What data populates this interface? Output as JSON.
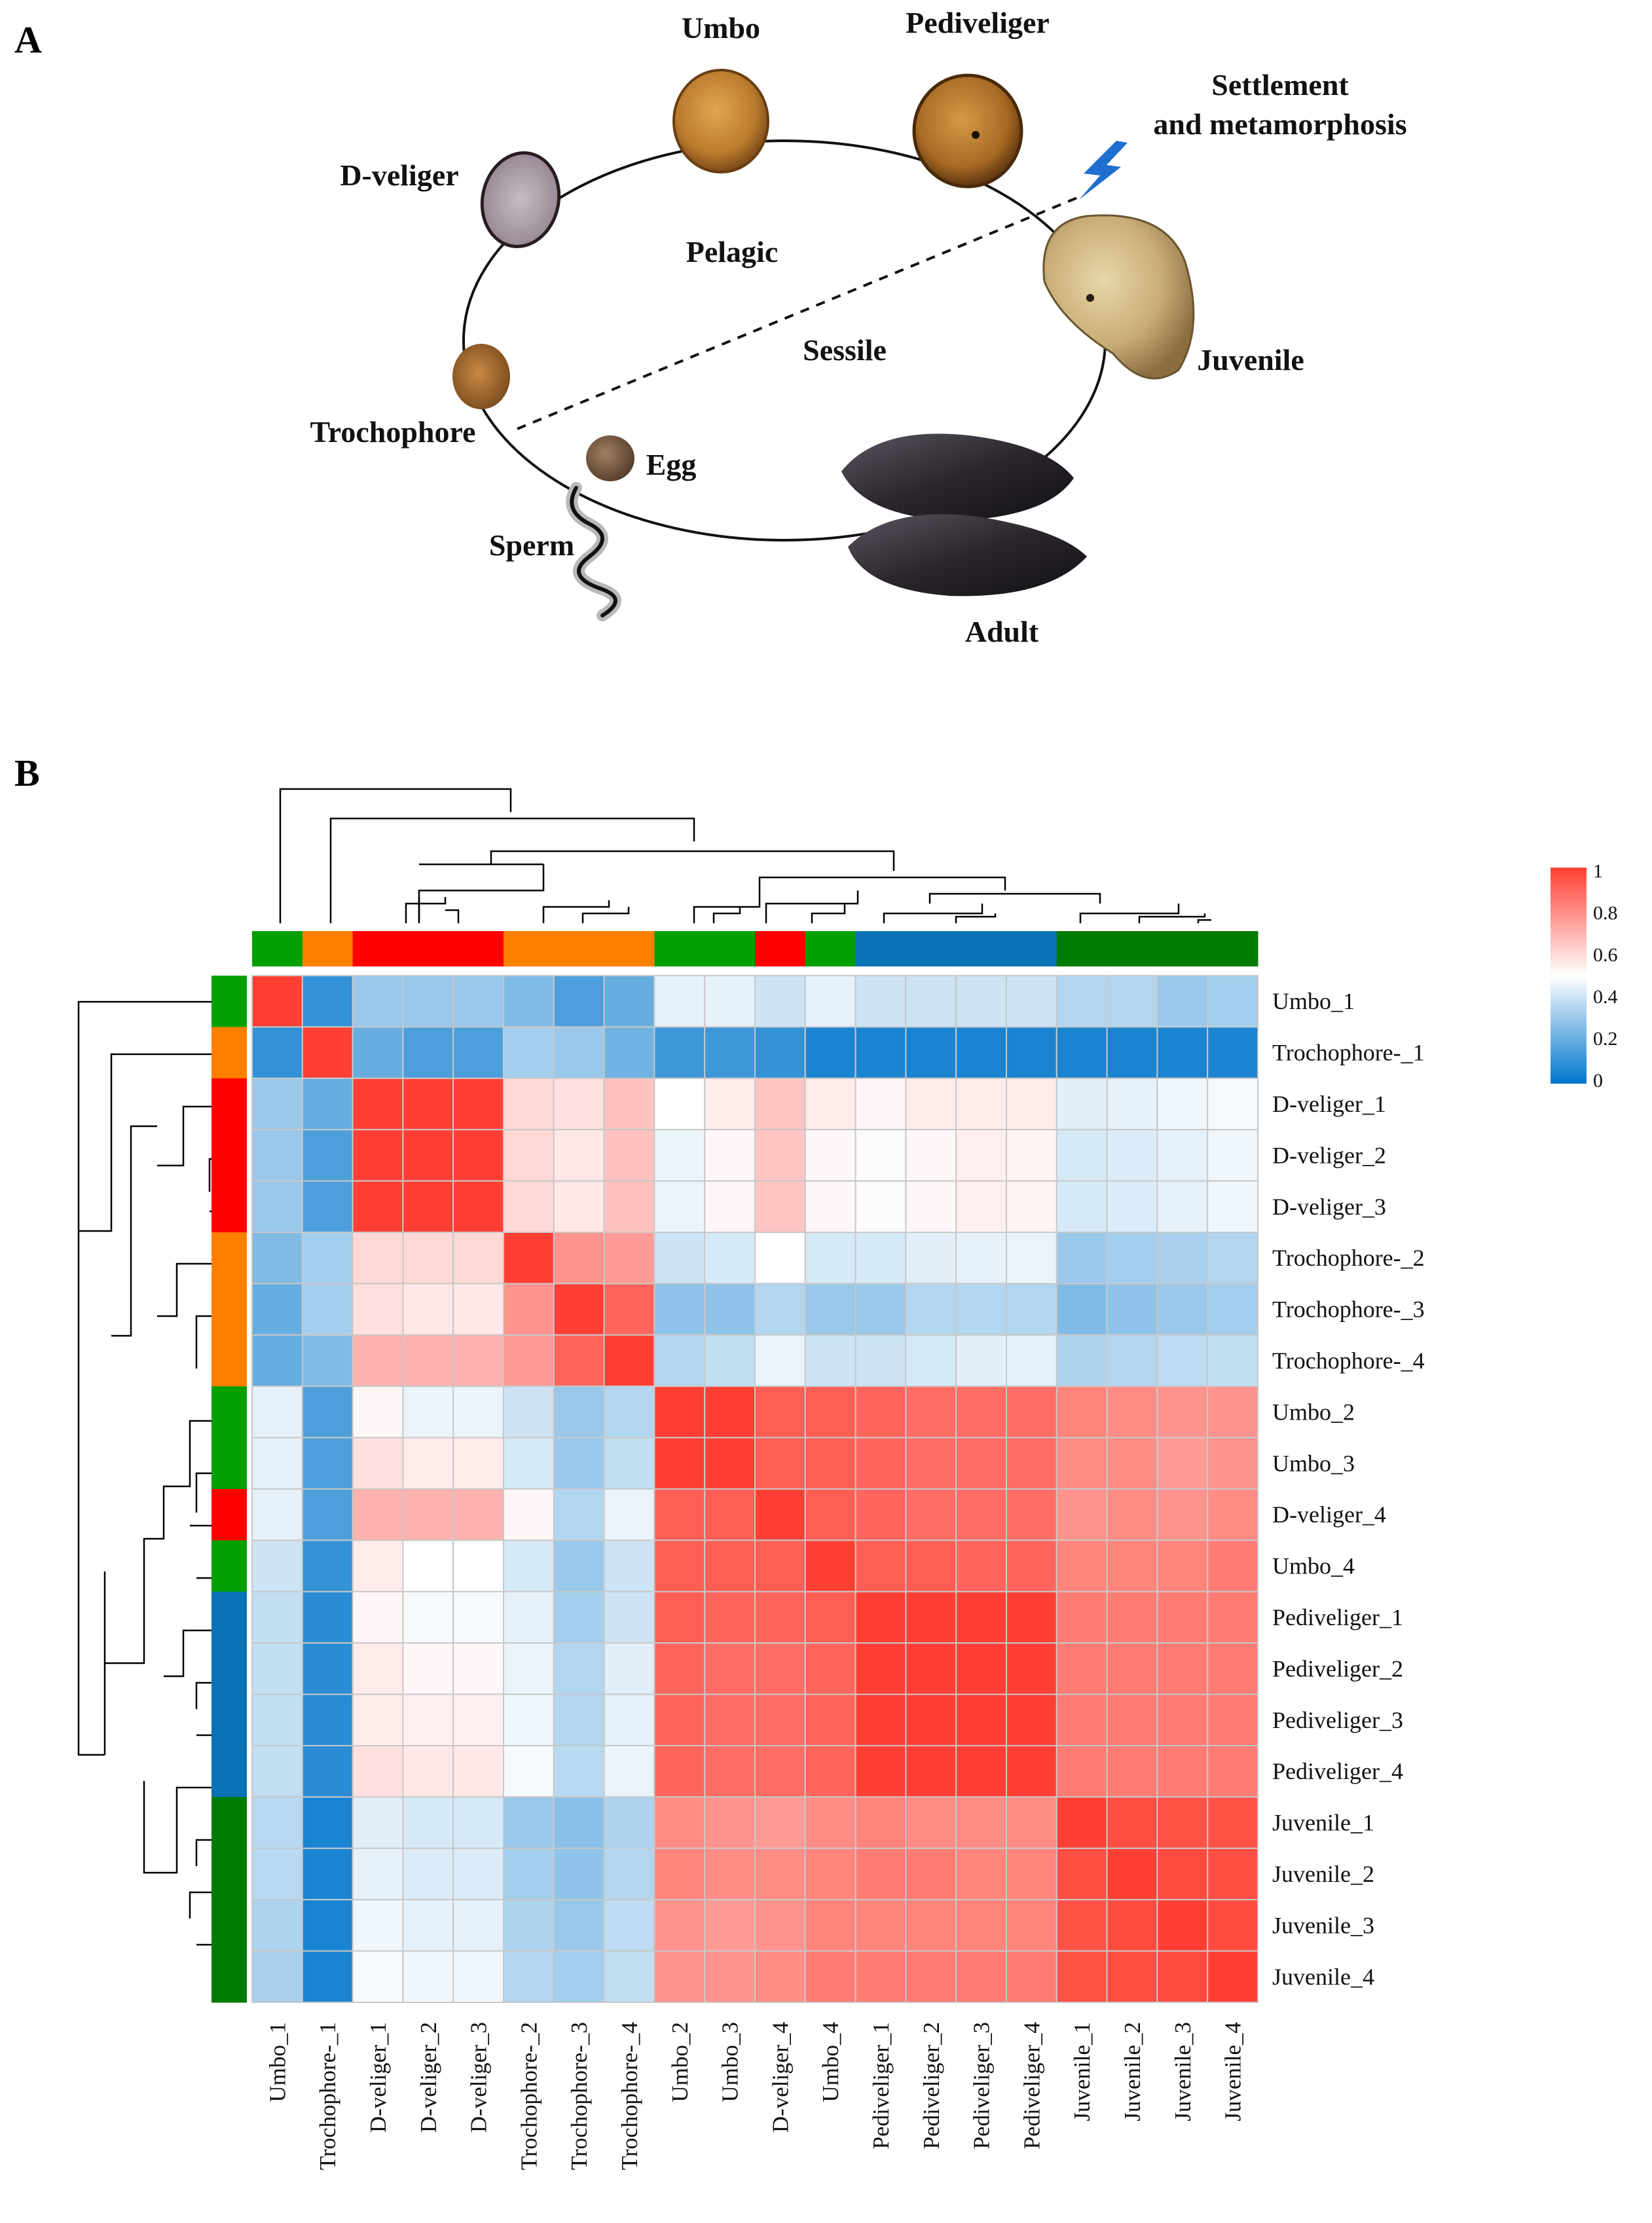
{
  "panel_a": {
    "letter": "A",
    "stages": {
      "umbo": "Umbo",
      "pediveliger": "Pediveliger",
      "settlement_line1": "Settlement",
      "settlement_line2": "and metamorphosis",
      "d_veliger": "D-veliger",
      "juvenile": "Juvenile",
      "trochophore": "Trochophore",
      "egg": "Egg",
      "sperm": "Sperm",
      "adult": "Adult"
    },
    "regions": {
      "pelagic": "Pelagic",
      "sessile": "Sessile"
    }
  },
  "panel_b": {
    "letter": "B"
  },
  "chart_data": {
    "type": "heatmap",
    "title": "",
    "samples": [
      "Umbo_1",
      "Trochophore-_1",
      "D-veliger_1",
      "D-veliger_2",
      "D-veliger_3",
      "Trochophore-_2",
      "Trochophore-_3",
      "Trochophore-_4",
      "Umbo_2",
      "Umbo_3",
      "D-veliger_4",
      "Umbo_4",
      "Pediveliger_1",
      "Pediveliger_2",
      "Pediveliger_3",
      "Pediveliger_4",
      "Juvenile_1",
      "Juvenile_2",
      "Juvenile_3",
      "Juvenile_4"
    ],
    "row_labels": [
      "Umbo_1",
      "Trochophore-_1",
      "D-veliger_1",
      "D-veliger_2",
      "D-veliger_3",
      "Trochophore-_2",
      "Trochophore-_3",
      "Trochophore-_4",
      "Umbo_2",
      "Umbo_3",
      "D-veliger_4",
      "Umbo_4",
      "Pediveliger_1",
      "Pediveliger_2",
      "Pediveliger_3",
      "Pediveliger_4",
      "Juvenile_1",
      "Juvenile_2",
      "Juvenile_3",
      "Juvenile_4"
    ],
    "col_labels": [
      "Umbo_1",
      "Trochophore-_1",
      "D-veliger_1",
      "D-veliger_2",
      "D-veliger_3",
      "Trochophore-_2",
      "Trochophore-_3",
      "Trochophore-_4",
      "Umbo_2",
      "Umbo_3",
      "D-veliger_4",
      "Umbo_4",
      "Pediveliger_1",
      "Pediveliger_2",
      "Pediveliger_3",
      "Pediveliger_4",
      "Juvenile_1",
      "Juvenile_2",
      "Juvenile_3",
      "Juvenile_4"
    ],
    "values": [
      [
        1.0,
        0.1,
        0.3,
        0.3,
        0.3,
        0.25,
        0.15,
        0.2,
        0.45,
        0.45,
        0.4,
        0.45,
        0.4,
        0.4,
        0.4,
        0.4,
        0.35,
        0.35,
        0.3,
        0.32
      ],
      [
        0.1,
        1.0,
        0.2,
        0.15,
        0.15,
        0.32,
        0.3,
        0.22,
        0.12,
        0.12,
        0.1,
        0.05,
        0.05,
        0.05,
        0.05,
        0.05,
        0.05,
        0.05,
        0.05,
        0.05
      ],
      [
        0.3,
        0.2,
        1.0,
        1.0,
        1.0,
        0.6,
        0.58,
        0.66,
        0.5,
        0.55,
        0.65,
        0.55,
        0.52,
        0.55,
        0.55,
        0.55,
        0.44,
        0.45,
        0.47,
        0.48
      ],
      [
        0.3,
        0.15,
        1.0,
        1.0,
        1.0,
        0.6,
        0.56,
        0.66,
        0.46,
        0.52,
        0.65,
        0.52,
        0.49,
        0.52,
        0.54,
        0.53,
        0.42,
        0.43,
        0.45,
        0.47
      ],
      [
        0.3,
        0.15,
        1.0,
        1.0,
        1.0,
        0.6,
        0.56,
        0.66,
        0.46,
        0.52,
        0.65,
        0.52,
        0.49,
        0.52,
        0.54,
        0.53,
        0.42,
        0.43,
        0.45,
        0.47
      ],
      [
        0.25,
        0.32,
        0.6,
        0.6,
        0.6,
        1.0,
        0.78,
        0.76,
        0.4,
        0.42,
        0.5,
        0.42,
        0.42,
        0.44,
        0.45,
        0.46,
        0.3,
        0.32,
        0.33,
        0.35
      ],
      [
        0.2,
        0.32,
        0.58,
        0.56,
        0.56,
        0.78,
        1.0,
        0.9,
        0.28,
        0.28,
        0.35,
        0.3,
        0.3,
        0.35,
        0.35,
        0.35,
        0.25,
        0.28,
        0.3,
        0.32
      ],
      [
        0.2,
        0.25,
        0.7,
        0.7,
        0.7,
        0.76,
        0.9,
        1.0,
        0.35,
        0.38,
        0.46,
        0.4,
        0.4,
        0.42,
        0.44,
        0.45,
        0.34,
        0.35,
        0.37,
        0.38
      ],
      [
        0.45,
        0.15,
        0.52,
        0.46,
        0.46,
        0.4,
        0.3,
        0.35,
        1.0,
        1.0,
        0.92,
        0.92,
        0.9,
        0.88,
        0.88,
        0.88,
        0.82,
        0.8,
        0.78,
        0.78
      ],
      [
        0.45,
        0.15,
        0.58,
        0.55,
        0.55,
        0.42,
        0.3,
        0.38,
        1.0,
        1.0,
        0.92,
        0.92,
        0.9,
        0.88,
        0.88,
        0.88,
        0.8,
        0.8,
        0.76,
        0.78
      ],
      [
        0.45,
        0.15,
        0.7,
        0.7,
        0.7,
        0.52,
        0.35,
        0.46,
        0.92,
        0.92,
        1.0,
        0.92,
        0.9,
        0.88,
        0.88,
        0.88,
        0.78,
        0.8,
        0.78,
        0.8
      ],
      [
        0.4,
        0.1,
        0.55,
        0.5,
        0.5,
        0.42,
        0.3,
        0.4,
        0.92,
        0.92,
        0.92,
        1.0,
        0.92,
        0.92,
        0.9,
        0.9,
        0.82,
        0.82,
        0.82,
        0.84
      ],
      [
        0.38,
        0.08,
        0.52,
        0.48,
        0.48,
        0.45,
        0.32,
        0.4,
        0.92,
        0.9,
        0.9,
        0.92,
        1.0,
        1.0,
        1.0,
        1.0,
        0.84,
        0.84,
        0.84,
        0.84
      ],
      [
        0.38,
        0.08,
        0.55,
        0.52,
        0.52,
        0.46,
        0.35,
        0.44,
        0.9,
        0.88,
        0.88,
        0.9,
        1.0,
        1.0,
        1.0,
        1.0,
        0.84,
        0.84,
        0.84,
        0.84
      ],
      [
        0.38,
        0.08,
        0.55,
        0.54,
        0.54,
        0.47,
        0.35,
        0.45,
        0.9,
        0.88,
        0.88,
        0.9,
        1.0,
        1.0,
        1.0,
        1.0,
        0.84,
        0.84,
        0.84,
        0.84
      ],
      [
        0.38,
        0.08,
        0.58,
        0.56,
        0.56,
        0.48,
        0.36,
        0.46,
        0.9,
        0.88,
        0.88,
        0.9,
        1.0,
        1.0,
        1.0,
        1.0,
        0.84,
        0.84,
        0.84,
        0.84
      ],
      [
        0.36,
        0.05,
        0.44,
        0.42,
        0.42,
        0.3,
        0.27,
        0.34,
        0.8,
        0.78,
        0.76,
        0.8,
        0.82,
        0.8,
        0.8,
        0.8,
        1.0,
        0.96,
        0.95,
        0.95
      ],
      [
        0.36,
        0.05,
        0.45,
        0.43,
        0.43,
        0.32,
        0.28,
        0.35,
        0.82,
        0.8,
        0.8,
        0.82,
        0.84,
        0.84,
        0.82,
        0.82,
        0.96,
        1.0,
        0.97,
        0.96
      ],
      [
        0.34,
        0.05,
        0.47,
        0.45,
        0.45,
        0.34,
        0.3,
        0.37,
        0.78,
        0.76,
        0.78,
        0.82,
        0.82,
        0.82,
        0.82,
        0.82,
        0.95,
        0.97,
        1.0,
        0.97
      ],
      [
        0.33,
        0.05,
        0.48,
        0.47,
        0.47,
        0.35,
        0.32,
        0.38,
        0.78,
        0.78,
        0.8,
        0.84,
        0.84,
        0.84,
        0.84,
        0.84,
        0.95,
        0.96,
        0.97,
        1.0
      ]
    ],
    "group_colors": [
      "#00a000",
      "#ff8000",
      "#ff0000",
      "#ff0000",
      "#ff0000",
      "#ff8000",
      "#ff8000",
      "#ff8000",
      "#00a000",
      "#00a000",
      "#ff0000",
      "#00a000",
      "#0a72b4",
      "#0a72b4",
      "#0a72b4",
      "#0a72b4",
      "#007b00",
      "#007b00",
      "#007b00",
      "#007b00"
    ],
    "color_scale": {
      "min": 0,
      "max": 1,
      "low": "#0076cc",
      "mid": "#ffffff",
      "high": "#ff3f33"
    },
    "legend_ticks": [
      "1",
      "0.8",
      "0.6",
      "0.4",
      "0.2",
      "0"
    ]
  }
}
